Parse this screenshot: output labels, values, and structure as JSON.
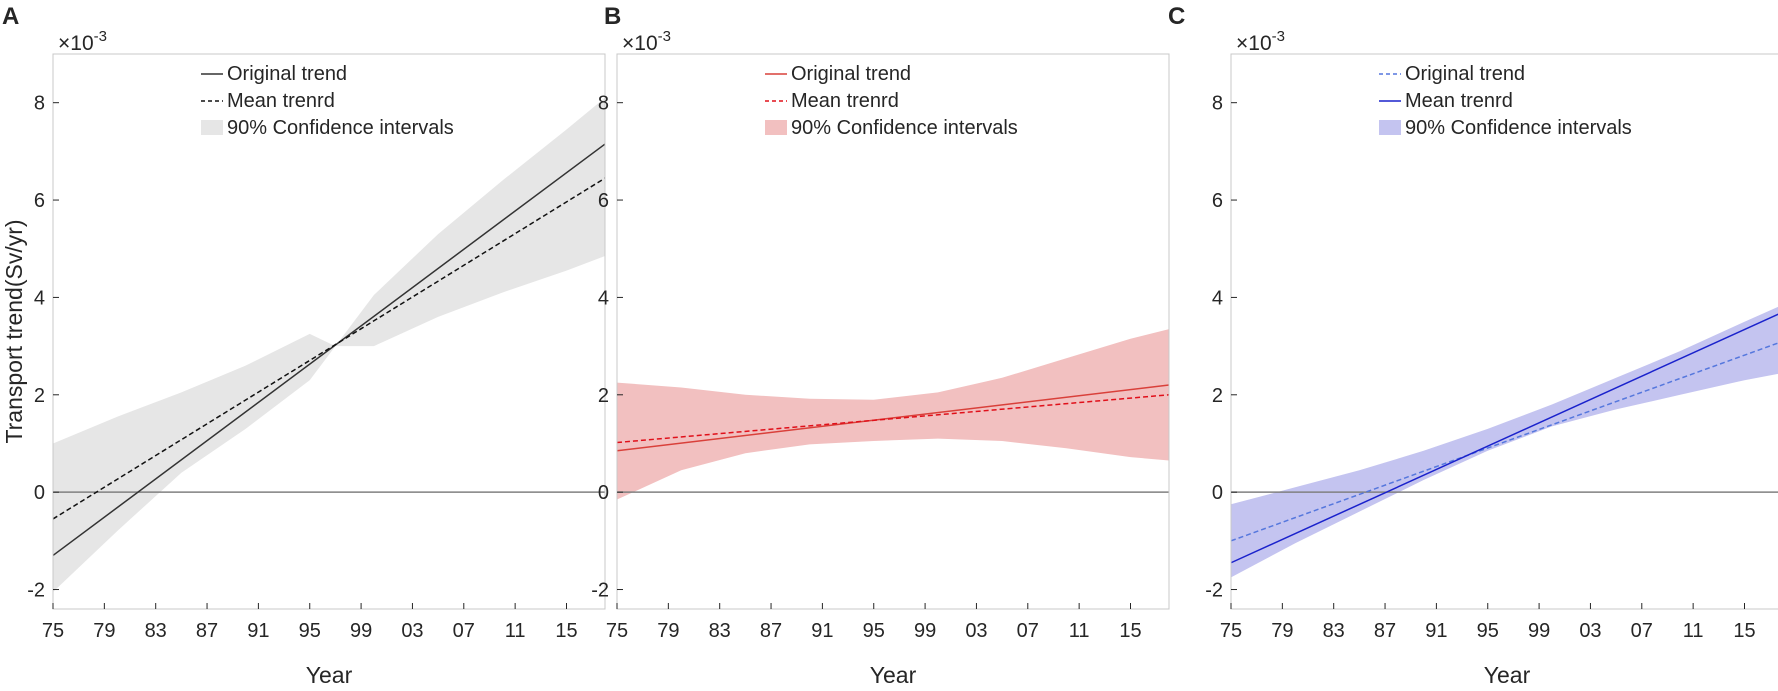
{
  "chart_data": [
    {
      "panel": "A",
      "type": "line",
      "ylabel": "Transport trend(Sv/yr)",
      "xlabel": "Year",
      "exponent": "×10",
      "exponent_power": "-3",
      "xlim": [
        1975,
        2018
      ],
      "ylim": [
        -2.4,
        9
      ],
      "xticks": [
        1975,
        1979,
        1983,
        1987,
        1991,
        1995,
        1999,
        2003,
        2007,
        2011,
        2015
      ],
      "xtick_labels": [
        "75",
        "79",
        "83",
        "87",
        "91",
        "95",
        "99",
        "03",
        "07",
        "11",
        "15"
      ],
      "yticks": [
        -2,
        0,
        2,
        4,
        6,
        8
      ],
      "ytick_labels": [
        "-2",
        "0",
        "2",
        "4",
        "6",
        "8"
      ],
      "colors": {
        "original": "#333333",
        "mean": "#111111",
        "ci": "#e6e6e6"
      },
      "original_style": "solid",
      "mean_style": "dashed",
      "legend": [
        "Original trend",
        "Mean trenrd",
        "90% Confidence intervals"
      ],
      "original": {
        "x": [
          1975,
          2018
        ],
        "y": [
          -1.3,
          7.15
        ]
      },
      "mean": {
        "x": [
          1975,
          2018
        ],
        "y": [
          -0.55,
          6.45
        ]
      },
      "ci_x": [
        1975,
        1980,
        1985,
        1990,
        1995,
        1997,
        2000,
        2005,
        2010,
        2015,
        2018
      ],
      "ci_upper": [
        1.0,
        1.55,
        2.05,
        2.6,
        3.25,
        3.0,
        4.05,
        5.3,
        6.4,
        7.45,
        8.1
      ],
      "ci_lower": [
        -2.05,
        -0.8,
        0.4,
        1.3,
        2.3,
        3.0,
        3.0,
        3.6,
        4.1,
        4.55,
        4.85
      ]
    },
    {
      "panel": "B",
      "type": "line",
      "xlabel": "Year",
      "exponent": "×10",
      "exponent_power": "-3",
      "xlim": [
        1975,
        2018
      ],
      "ylim": [
        -2.4,
        9
      ],
      "xticks": [
        1975,
        1979,
        1983,
        1987,
        1991,
        1995,
        1999,
        2003,
        2007,
        2011,
        2015
      ],
      "xtick_labels": [
        "75",
        "79",
        "83",
        "87",
        "91",
        "95",
        "99",
        "03",
        "07",
        "11",
        "15"
      ],
      "yticks": [
        -2,
        0,
        2,
        4,
        6,
        8
      ],
      "ytick_labels": [
        "-2",
        "0",
        "2",
        "4",
        "6",
        "8"
      ],
      "colors": {
        "original": "#d9403a",
        "mean": "#e0101a",
        "ci": "#f2c0c0"
      },
      "original_style": "solid",
      "mean_style": "dashed",
      "legend": [
        "Original trend",
        "Mean trenrd",
        "90% Confidence intervals"
      ],
      "original": {
        "x": [
          1975,
          2018
        ],
        "y": [
          0.85,
          2.2
        ]
      },
      "mean": {
        "x": [
          1975,
          2018
        ],
        "y": [
          1.02,
          2.0
        ]
      },
      "ci_x": [
        1975,
        1980,
        1985,
        1990,
        1995,
        2000,
        2005,
        2010,
        2015,
        2018
      ],
      "ci_upper": [
        2.25,
        2.15,
        2.0,
        1.92,
        1.9,
        2.05,
        2.35,
        2.75,
        3.15,
        3.35
      ],
      "ci_lower": [
        -0.15,
        0.45,
        0.8,
        0.98,
        1.05,
        1.1,
        1.05,
        0.9,
        0.72,
        0.65
      ]
    },
    {
      "panel": "C",
      "type": "line",
      "xlabel": "Year",
      "exponent": "×10",
      "exponent_power": "-3",
      "xlim": [
        1975,
        2018
      ],
      "ylim": [
        -2.4,
        9
      ],
      "xticks": [
        1975,
        1979,
        1983,
        1987,
        1991,
        1995,
        1999,
        2003,
        2007,
        2011,
        2015
      ],
      "xtick_labels": [
        "75",
        "79",
        "83",
        "87",
        "91",
        "95",
        "99",
        "03",
        "07",
        "11",
        "15"
      ],
      "yticks": [
        -2,
        0,
        2,
        4,
        6,
        8
      ],
      "ytick_labels": [
        "-2",
        "0",
        "2",
        "4",
        "6",
        "8"
      ],
      "colors": {
        "original": "#5577dd",
        "mean": "#1a22cc",
        "ci": "#c4c4f0"
      },
      "original_style": "dashed",
      "mean_style": "solid",
      "legend": [
        "Original trend",
        "Mean trenrd",
        "90% Confidence intervals"
      ],
      "original": {
        "x": [
          1975,
          2018
        ],
        "y": [
          -1.0,
          3.1
        ]
      },
      "mean": {
        "x": [
          1975,
          2018
        ],
        "y": [
          -1.45,
          3.7
        ]
      },
      "ci_x": [
        1975,
        1980,
        1985,
        1990,
        1995,
        2000,
        2005,
        2010,
        2015,
        2018
      ],
      "ci_upper": [
        -0.25,
        0.1,
        0.45,
        0.85,
        1.3,
        1.8,
        2.35,
        2.9,
        3.5,
        3.85
      ],
      "ci_lower": [
        -1.75,
        -1.05,
        -0.4,
        0.25,
        0.85,
        1.35,
        1.7,
        2.0,
        2.3,
        2.45
      ]
    }
  ]
}
